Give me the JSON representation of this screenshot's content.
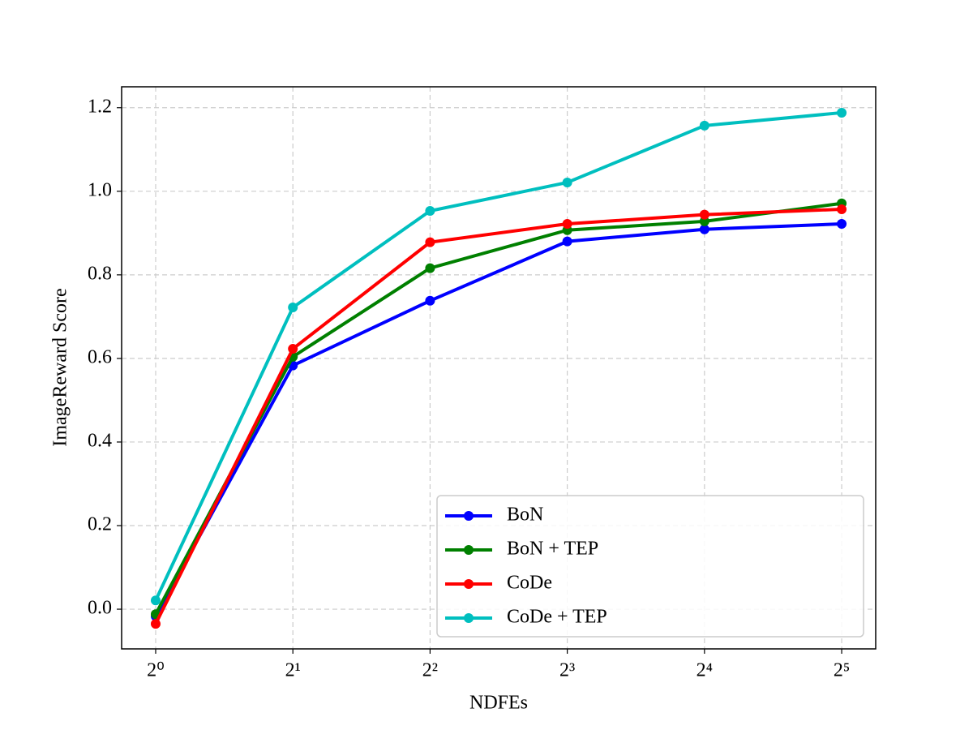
{
  "chart_data": {
    "type": "line",
    "x_label": "NDFEs",
    "y_label": "ImageReward Score",
    "x": [
      1,
      2,
      4,
      8,
      16,
      32
    ],
    "xscale": "log2",
    "xlim": [
      0.842,
      38.0
    ],
    "xticks": [
      {
        "value": 1,
        "label": "2⁰"
      },
      {
        "value": 2,
        "label": "2¹"
      },
      {
        "value": 4,
        "label": "2²"
      },
      {
        "value": 8,
        "label": "2³"
      },
      {
        "value": 16,
        "label": "2⁴"
      },
      {
        "value": 32,
        "label": "2⁵"
      }
    ],
    "ylim": [
      -0.095,
      1.25
    ],
    "yticks": [
      {
        "value": 0,
        "label": "0.0"
      },
      0.2,
      0.4,
      0.6,
      0.8,
      {
        "value": 1,
        "label": "1.0"
      },
      1.2
    ],
    "grid": true,
    "legend": "lower right",
    "series": [
      {
        "name": "BoN",
        "color": "#0000ff",
        "values": [
          -0.017,
          0.583,
          0.738,
          0.88,
          0.909,
          0.922
        ]
      },
      {
        "name": "BoN + TEP",
        "color": "#008000",
        "values": [
          -0.012,
          0.604,
          0.816,
          0.907,
          0.928,
          0.971
        ]
      },
      {
        "name": "CoDe",
        "color": "#ff0000",
        "values": [
          -0.035,
          0.623,
          0.878,
          0.922,
          0.944,
          0.957
        ]
      },
      {
        "name": "CoDe + TEP",
        "color": "#00bfbf",
        "values": [
          0.021,
          0.722,
          0.953,
          1.021,
          1.157,
          1.188
        ]
      }
    ]
  }
}
